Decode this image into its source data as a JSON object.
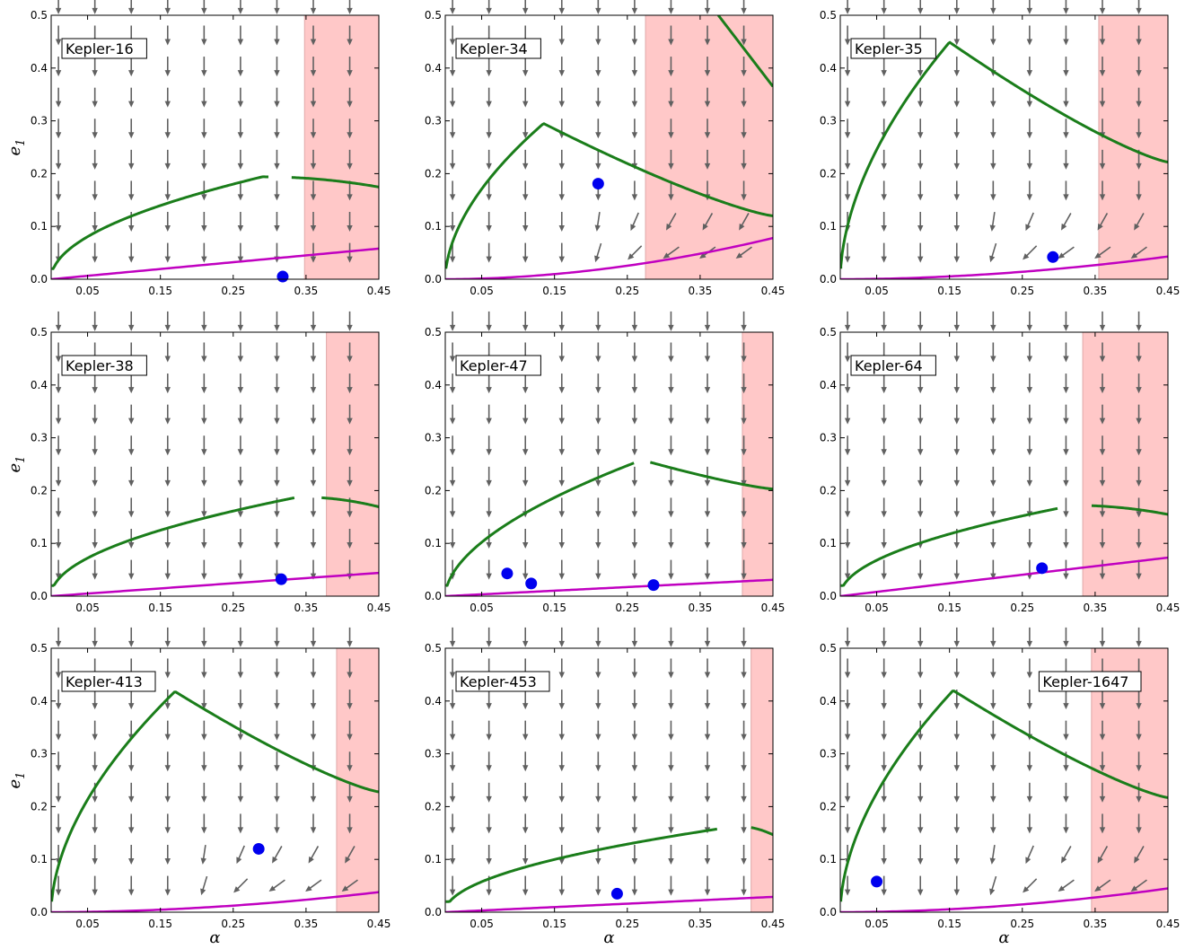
{
  "figure": {
    "x_axis_label": "α",
    "y_axis_label_main": "e",
    "y_axis_label_sub": "1",
    "x_tick_labels": [
      "0.05",
      "0.15",
      "0.25",
      "0.35",
      "0.45"
    ],
    "y_tick_labels": [
      "0.0",
      "0.1",
      "0.2",
      "0.3",
      "0.4",
      "0.5"
    ]
  },
  "colors": {
    "unstable_region": "#ffc8c8",
    "unstable_edge": "#e0a8a8",
    "green_curve": "#1a7d1a",
    "magenta_curve": "#c000c0",
    "planet_marker": "#0000ee",
    "arrow": "#606060"
  },
  "chart_data": [
    {
      "type": "scatter",
      "title": "Kepler-16",
      "xlim": [
        0,
        0.45
      ],
      "ylim": [
        0,
        0.5
      ],
      "xticks": [
        0.05,
        0.15,
        0.25,
        0.35,
        0.45
      ],
      "yticks": [
        0.0,
        0.1,
        0.2,
        0.3,
        0.4,
        0.5
      ],
      "unstable_alpha_min": 0.348,
      "green_curve": {
        "shape": "sqrt",
        "amplitude": 0.194,
        "peak": 0.29,
        "decline": 0.45,
        "gap": [
          0.3,
          0.33
        ]
      },
      "magenta_curve": {
        "shape": "linear",
        "value_at_max": 0.058
      },
      "planets": [
        {
          "alpha": 0.318,
          "e1": 0.005
        }
      ],
      "arrow_field": "down"
    },
    {
      "type": "scatter",
      "title": "Kepler-34",
      "xlim": [
        0,
        0.45
      ],
      "ylim": [
        0,
        0.5
      ],
      "xticks": [
        0.05,
        0.15,
        0.25,
        0.35,
        0.45
      ],
      "yticks": [
        0.0,
        0.1,
        0.2,
        0.3,
        0.4,
        0.5
      ],
      "unstable_alpha_min": 0.275,
      "green_curve": {
        "shape": "hump",
        "peak_alpha": 0.135,
        "peak_e1": 0.295,
        "end_e1": 0.12
      },
      "green_curve_2": [
        [
          0.375,
          0.5
        ],
        [
          0.45,
          0.365
        ]
      ],
      "magenta_curve": {
        "shape": "quadratic",
        "value_at_max": 0.078
      },
      "planets": [
        {
          "alpha": 0.21,
          "e1": 0.181
        }
      ],
      "arrow_field": "down_with_inward_low_right"
    },
    {
      "type": "scatter",
      "title": "Kepler-35",
      "xlim": [
        0,
        0.45
      ],
      "ylim": [
        0,
        0.5
      ],
      "xticks": [
        0.05,
        0.15,
        0.25,
        0.35,
        0.45
      ],
      "yticks": [
        0.0,
        0.1,
        0.2,
        0.3,
        0.4,
        0.5
      ],
      "unstable_alpha_min": 0.355,
      "green_curve": {
        "shape": "hump",
        "peak_alpha": 0.15,
        "peak_e1": 0.449,
        "end_e1": 0.222
      },
      "magenta_curve": {
        "shape": "quadratic",
        "value_at_max": 0.043
      },
      "planets": [
        {
          "alpha": 0.292,
          "e1": 0.042
        }
      ],
      "arrow_field": "down_with_inward_low_right"
    },
    {
      "type": "scatter",
      "title": "Kepler-38",
      "xlim": [
        0,
        0.45
      ],
      "ylim": [
        0,
        0.5
      ],
      "xticks": [
        0.05,
        0.15,
        0.25,
        0.35,
        0.45
      ],
      "yticks": [
        0.0,
        0.1,
        0.2,
        0.3,
        0.4,
        0.5
      ],
      "unstable_alpha_min": 0.378,
      "green_curve": {
        "shape": "sqrt",
        "amplitude": 0.188,
        "peak": 0.34,
        "decline": 0.45,
        "gap": [
          0.335,
          0.37
        ]
      },
      "magenta_curve": {
        "shape": "linear",
        "value_at_max": 0.044
      },
      "planets": [
        {
          "alpha": 0.316,
          "e1": 0.032
        }
      ],
      "arrow_field": "down"
    },
    {
      "type": "scatter",
      "title": "Kepler-47",
      "xlim": [
        0,
        0.45
      ],
      "ylim": [
        0,
        0.5
      ],
      "xticks": [
        0.05,
        0.15,
        0.25,
        0.35,
        0.45
      ],
      "yticks": [
        0.0,
        0.1,
        0.2,
        0.3,
        0.4,
        0.5
      ],
      "unstable_alpha_min": 0.408,
      "green_curve": {
        "shape": "hump",
        "peak_alpha": 0.27,
        "peak_e1": 0.258,
        "end_e1": 0.203,
        "gap": [
          0.26,
          0.28
        ]
      },
      "magenta_curve": {
        "shape": "linear",
        "value_at_max": 0.031
      },
      "planets": [
        {
          "alpha": 0.085,
          "e1": 0.043
        },
        {
          "alpha": 0.118,
          "e1": 0.024
        },
        {
          "alpha": 0.286,
          "e1": 0.021
        }
      ],
      "arrow_field": "down"
    },
    {
      "type": "scatter",
      "title": "Kepler-64",
      "xlim": [
        0,
        0.45
      ],
      "ylim": [
        0,
        0.5
      ],
      "xticks": [
        0.05,
        0.15,
        0.25,
        0.35,
        0.45
      ],
      "yticks": [
        0.0,
        0.1,
        0.2,
        0.3,
        0.4,
        0.5
      ],
      "unstable_alpha_min": 0.333,
      "green_curve": {
        "shape": "sqrt",
        "amplitude": 0.172,
        "peak": 0.32,
        "decline": 0.45,
        "gap": [
          0.3,
          0.345
        ]
      },
      "magenta_curve": {
        "shape": "linear",
        "value_at_max": 0.073
      },
      "planets": [
        {
          "alpha": 0.277,
          "e1": 0.053
        }
      ],
      "arrow_field": "down"
    },
    {
      "type": "scatter",
      "title": "Kepler-413",
      "xlim": [
        0,
        0.45
      ],
      "ylim": [
        0,
        0.5
      ],
      "xticks": [
        0.05,
        0.15,
        0.25,
        0.35,
        0.45
      ],
      "yticks": [
        0.0,
        0.1,
        0.2,
        0.3,
        0.4,
        0.5
      ],
      "unstable_alpha_min": 0.392,
      "green_curve": {
        "shape": "hump",
        "peak_alpha": 0.17,
        "peak_e1": 0.418,
        "end_e1": 0.228
      },
      "magenta_curve": {
        "shape": "quadratic",
        "value_at_max": 0.038
      },
      "planets": [
        {
          "alpha": 0.285,
          "e1": 0.12
        }
      ],
      "arrow_field": "down_with_inward_low_right"
    },
    {
      "type": "scatter",
      "title": "Kepler-453",
      "xlim": [
        0,
        0.45
      ],
      "ylim": [
        0,
        0.5
      ],
      "xticks": [
        0.05,
        0.15,
        0.25,
        0.35,
        0.45
      ],
      "yticks": [
        0.0,
        0.1,
        0.2,
        0.3,
        0.4,
        0.5
      ],
      "unstable_alpha_min": 0.42,
      "green_curve": {
        "shape": "sqrt",
        "amplitude": 0.163,
        "peak": 0.4,
        "decline": 0.45,
        "gap": [
          0.375,
          0.42
        ]
      },
      "magenta_curve": {
        "shape": "linear",
        "value_at_max": 0.029
      },
      "planets": [
        {
          "alpha": 0.236,
          "e1": 0.035
        }
      ],
      "arrow_field": "down"
    },
    {
      "type": "scatter",
      "title": "Kepler-1647",
      "xlim": [
        0,
        0.45
      ],
      "ylim": [
        0,
        0.5
      ],
      "xticks": [
        0.05,
        0.15,
        0.25,
        0.35,
        0.45
      ],
      "yticks": [
        0.0,
        0.1,
        0.2,
        0.3,
        0.4,
        0.5
      ],
      "unstable_alpha_min": 0.345,
      "green_curve": {
        "shape": "hump",
        "peak_alpha": 0.155,
        "peak_e1": 0.42,
        "end_e1": 0.217
      },
      "magenta_curve": {
        "shape": "quadratic",
        "value_at_max": 0.045
      },
      "planets": [
        {
          "alpha": 0.05,
          "e1": 0.058
        }
      ],
      "arrow_field": "down_with_inward_low_right"
    }
  ]
}
